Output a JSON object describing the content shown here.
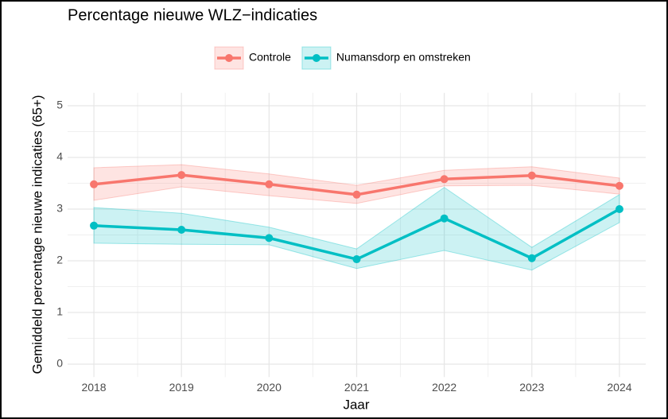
{
  "chart_data": {
    "type": "line",
    "title": "Percentage nieuwe WLZ−indicaties",
    "x_label": "Jaar",
    "y_label": "Gemiddeld percentage nieuwe indicaties (65+)",
    "x": [
      2018,
      2019,
      2020,
      2021,
      2022,
      2023,
      2024
    ],
    "series": [
      {
        "name": "Controle",
        "color": "#F8766D",
        "values": [
          3.48,
          3.66,
          3.48,
          3.28,
          3.58,
          3.65,
          3.45
        ],
        "lower": [
          3.17,
          3.43,
          3.26,
          3.11,
          3.45,
          3.46,
          3.29
        ],
        "upper": [
          3.8,
          3.86,
          3.68,
          3.46,
          3.75,
          3.82,
          3.6
        ]
      },
      {
        "name": "Numansdorp en omstreken",
        "color": "#00BFC4",
        "values": [
          2.68,
          2.6,
          2.44,
          2.03,
          2.82,
          2.05,
          3.0
        ],
        "lower": [
          2.34,
          2.32,
          2.31,
          1.85,
          2.2,
          1.82,
          2.74
        ],
        "upper": [
          3.03,
          2.92,
          2.65,
          2.23,
          3.42,
          2.26,
          3.28
        ]
      }
    ],
    "xlim": [
      2017.7,
      2024.3
    ],
    "xticks": [
      2018,
      2019,
      2020,
      2021,
      2022,
      2023,
      2024
    ],
    "ylim": [
      -0.25,
      5.25
    ],
    "yticks": [
      0,
      1,
      2,
      3,
      4,
      5
    ],
    "grid": true,
    "legend": "top"
  }
}
